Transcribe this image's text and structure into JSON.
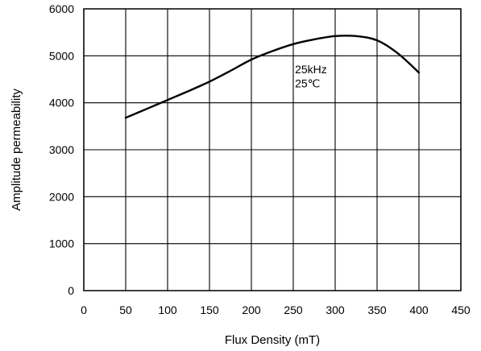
{
  "chart_data": {
    "type": "line",
    "title": "",
    "xlabel": "Flux Density (mT)",
    "ylabel": "Amplitude permeability",
    "xlim": [
      0,
      450
    ],
    "ylim": [
      0,
      6000
    ],
    "x_ticks": [
      0,
      50,
      100,
      150,
      200,
      250,
      300,
      350,
      400,
      450
    ],
    "y_ticks": [
      0,
      1000,
      2000,
      3000,
      4000,
      5000,
      6000
    ],
    "grid": true,
    "annotations": [
      "25kHz",
      "25℃"
    ],
    "series": [
      {
        "x": [
          50,
          75,
          100,
          125,
          150,
          175,
          200,
          225,
          250,
          275,
          300,
          325,
          350,
          375,
          400
        ],
        "y": [
          3680,
          3870,
          4060,
          4250,
          4450,
          4680,
          4920,
          5100,
          5250,
          5350,
          5420,
          5420,
          5330,
          5050,
          4640
        ]
      }
    ],
    "color": "#000000"
  }
}
